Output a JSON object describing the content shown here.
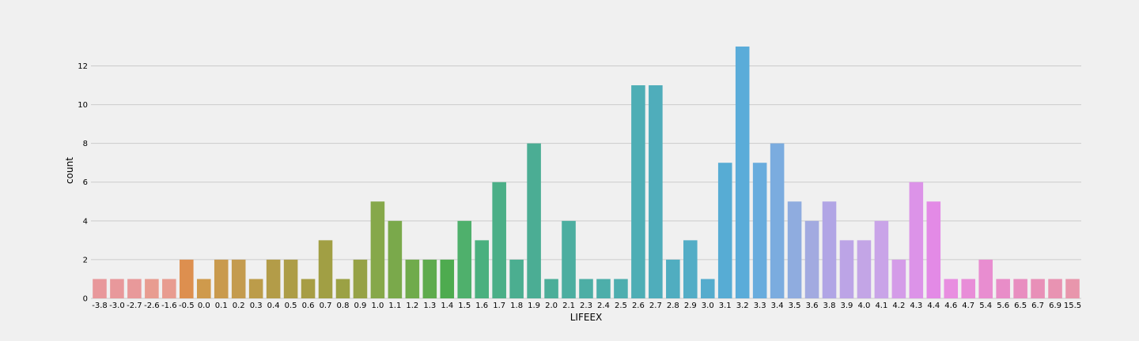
{
  "chart_data": {
    "type": "bar",
    "xlabel": "LIFEEX",
    "ylabel": "count",
    "ylim": [
      0,
      13.65
    ],
    "yticks": [
      0,
      2,
      4,
      6,
      8,
      10,
      12
    ],
    "grid": true,
    "categories": [
      "-3.8",
      "-3.0",
      "-2.7",
      "-2.6",
      "-1.6",
      "-0.5",
      "0.0",
      "0.1",
      "0.2",
      "0.3",
      "0.4",
      "0.5",
      "0.6",
      "0.7",
      "0.8",
      "0.9",
      "1.0",
      "1.1",
      "1.2",
      "1.3",
      "1.4",
      "1.5",
      "1.6",
      "1.7",
      "1.8",
      "1.9",
      "2.0",
      "2.1",
      "2.3",
      "2.4",
      "2.5",
      "2.6",
      "2.7",
      "2.8",
      "2.9",
      "3.0",
      "3.1",
      "3.2",
      "3.3",
      "3.4",
      "3.5",
      "3.6",
      "3.8",
      "3.9",
      "4.0",
      "4.1",
      "4.2",
      "4.3",
      "4.4",
      "4.6",
      "4.7",
      "5.4",
      "5.6",
      "6.5",
      "6.7",
      "6.9",
      "15.5"
    ],
    "values": [
      1,
      1,
      1,
      1,
      1,
      2,
      1,
      2,
      2,
      1,
      2,
      2,
      1,
      3,
      1,
      2,
      5,
      4,
      2,
      2,
      2,
      4,
      3,
      6,
      2,
      8,
      1,
      4,
      1,
      1,
      1,
      11,
      11,
      2,
      3,
      1,
      7,
      13,
      7,
      8,
      5,
      4,
      5,
      3,
      3,
      4,
      2,
      6,
      5,
      1,
      1,
      2,
      1,
      1,
      1,
      1,
      1
    ],
    "colors": [
      "#e8989b",
      "#e8989b",
      "#e8999a",
      "#e89c90",
      "#e89c90",
      "#dd8f4f",
      "#cf9a4c",
      "#c99a4d",
      "#c49b4e",
      "#bc9c4a",
      "#b39c48",
      "#ad9d46",
      "#a79d44",
      "#a19f44",
      "#9ba144",
      "#96a246",
      "#86a84a",
      "#7aa94b",
      "#70ab4c",
      "#5eab4d",
      "#4eab4f",
      "#4fb06c",
      "#4ab07f",
      "#4baf87",
      "#4bae90",
      "#4bad94",
      "#4cae99",
      "#4caea0",
      "#4daea5",
      "#4daeaa",
      "#4eaeaf",
      "#4eaeb5",
      "#4fadbb",
      "#50adc0",
      "#53adc6",
      "#55accd",
      "#57acd4",
      "#5aacd9",
      "#68acdd",
      "#7bacdf",
      "#8facdf",
      "#a2aae0",
      "#b1a5e5",
      "#bca4e6",
      "#c3a5e6",
      "#c9a4e8",
      "#d49ce8",
      "#dc93e8",
      "#e38ae6",
      "#e88ee0",
      "#e88dd8",
      "#e88dd0",
      "#e88dc8",
      "#e88ec0",
      "#e890b8",
      "#e893b2",
      "#e896ac"
    ]
  }
}
